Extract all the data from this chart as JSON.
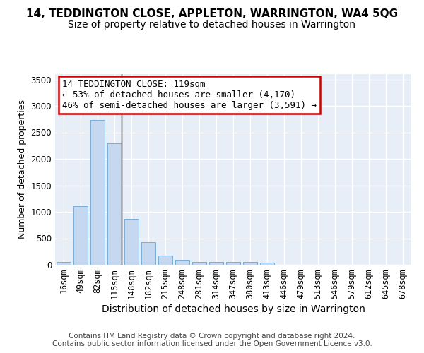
{
  "title": "14, TEDDINGTON CLOSE, APPLETON, WARRINGTON, WA4 5QG",
  "subtitle": "Size of property relative to detached houses in Warrington",
  "xlabel": "Distribution of detached houses by size in Warrington",
  "ylabel": "Number of detached properties",
  "categories": [
    "16sqm",
    "49sqm",
    "82sqm",
    "115sqm",
    "148sqm",
    "182sqm",
    "215sqm",
    "248sqm",
    "281sqm",
    "314sqm",
    "347sqm",
    "380sqm",
    "413sqm",
    "446sqm",
    "479sqm",
    "513sqm",
    "546sqm",
    "579sqm",
    "612sqm",
    "645sqm",
    "678sqm"
  ],
  "values": [
    55,
    1110,
    2730,
    2290,
    870,
    430,
    175,
    100,
    55,
    60,
    50,
    50,
    35,
    5,
    5,
    5,
    5,
    5,
    5,
    5,
    5
  ],
  "bar_color": "#c5d8f0",
  "bar_edge_color": "#7aadd4",
  "vline_color": "#000000",
  "annotation_text": "14 TEDDINGTON CLOSE: 119sqm\n← 53% of detached houses are smaller (4,170)\n46% of semi-detached houses are larger (3,591) →",
  "annotation_box_color": "#ffffff",
  "annotation_box_edge": "#cc0000",
  "ylim": [
    0,
    3600
  ],
  "yticks": [
    0,
    500,
    1000,
    1500,
    2000,
    2500,
    3000,
    3500
  ],
  "fig_bg_color": "#ffffff",
  "plot_bg_color": "#e8eef8",
  "grid_color": "#ffffff",
  "footer_text": "Contains HM Land Registry data © Crown copyright and database right 2024.\nContains public sector information licensed under the Open Government Licence v3.0.",
  "title_fontsize": 11,
  "subtitle_fontsize": 10,
  "xlabel_fontsize": 10,
  "ylabel_fontsize": 9,
  "tick_fontsize": 8.5,
  "annotation_fontsize": 9,
  "footer_fontsize": 7.5
}
